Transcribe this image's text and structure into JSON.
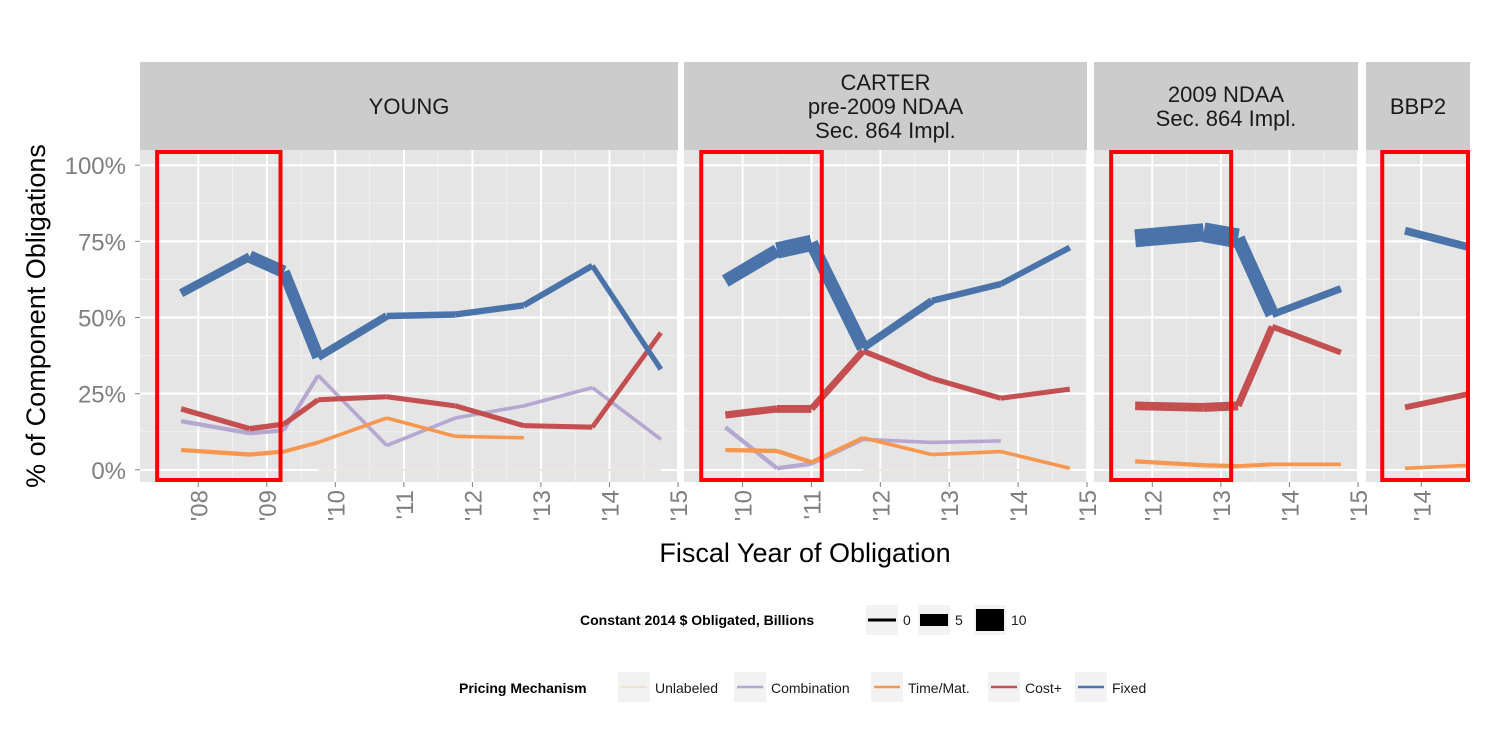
{
  "chart_data": {
    "type": "line",
    "ylabel": "% of Component Obligations",
    "xlabel": "Fiscal Year of Obligation",
    "y_tick_labels": [
      "0%",
      "25%",
      "50%",
      "75%",
      "100%"
    ],
    "ylim": [
      -0.04,
      1.05
    ],
    "colors": {
      "Unlabeled": "#ece5d6",
      "Combination": "#b4a7d0",
      "Time/Mat.": "#f7964e",
      "Cost+": "#c44f51",
      "Fixed": "#4a73a9",
      "highlight": "#ff0000",
      "panel": "#e5e5e5",
      "strip": "#cccccc"
    },
    "size_legend": {
      "title": "Constant 2014 $ Obligated, Billions",
      "labels": [
        "0",
        "5",
        "10"
      ],
      "values": [
        0,
        5,
        10
      ]
    },
    "color_legend": {
      "title": "Pricing Mechanism",
      "labels": [
        "Unlabeled",
        "Combination",
        "Time/Mat.",
        "Cost+",
        "Fixed"
      ]
    },
    "panels": [
      {
        "strip": [
          "YOUNG"
        ],
        "xlim": [
          2007.15,
          2015
        ],
        "x_tick_labels": [
          "'08",
          "'09",
          "'10",
          "'11",
          "'12",
          "'13",
          "'14",
          "'15"
        ],
        "x_ticks": [
          2008,
          2009,
          2010,
          2011,
          2012,
          2013,
          2014,
          2015
        ],
        "highlight": [
          2007.4,
          2009.2
        ],
        "series": [
          {
            "name": "Unlabeled",
            "x": [
              2009.75,
              2010.75,
              2011.75,
              2012.75,
              2013.75,
              2014.75
            ],
            "y": [
              0.0,
              0.0,
              0.0,
              0.0,
              0.0,
              0.0
            ],
            "w": [
              0.5,
              0.5,
              0.5,
              0.5,
              0.5,
              0.5
            ]
          },
          {
            "name": "Combination",
            "x": [
              2007.75,
              2008.75,
              2009.25,
              2009.75,
              2010.75,
              2011.75,
              2012.75,
              2013.75,
              2014.75
            ],
            "y": [
              0.16,
              0.12,
              0.13,
              0.31,
              0.08,
              0.17,
              0.21,
              0.27,
              0.1
            ],
            "w": [
              1.2,
              1.2,
              1.2,
              1.0,
              1.0,
              1.0,
              1.0,
              1.0,
              1.0
            ]
          },
          {
            "name": "Time/Mat.",
            "x": [
              2007.75,
              2008.75,
              2009.25,
              2009.75,
              2010.75,
              2011.75,
              2012.75
            ],
            "y": [
              0.065,
              0.05,
              0.06,
              0.09,
              0.17,
              0.11,
              0.105
            ],
            "w": [
              1.2,
              1.2,
              1.2,
              1.0,
              1.0,
              1.0,
              1.0
            ]
          },
          {
            "name": "Cost+",
            "x": [
              2007.75,
              2008.75,
              2009.25,
              2009.75,
              2010.75,
              2011.75,
              2012.75,
              2013.75,
              2014.75
            ],
            "y": [
              0.2,
              0.135,
              0.15,
              0.23,
              0.24,
              0.21,
              0.145,
              0.14,
              0.45
            ],
            "w": [
              1.5,
              1.5,
              1.5,
              1.4,
              1.4,
              1.4,
              1.4,
              1.4,
              1.3
            ]
          },
          {
            "name": "Fixed",
            "x": [
              2007.75,
              2008.75,
              2009.25,
              2009.75,
              2010.75,
              2011.75,
              2012.75,
              2013.75,
              2014.75
            ],
            "y": [
              0.58,
              0.7,
              0.65,
              0.37,
              0.505,
              0.51,
              0.54,
              0.67,
              0.33
            ],
            "w": [
              1.8,
              3.0,
              4.0,
              2.6,
              1.8,
              1.8,
              1.7,
              1.7,
              1.2
            ]
          }
        ]
      },
      {
        "strip": [
          "CARTER",
          "pre-2009 NDAA",
          "Sec. 864 Impl."
        ],
        "xlim": [
          2009.15,
          2015
        ],
        "x_tick_labels": [
          "'10",
          "'11",
          "'12",
          "'13",
          "'14",
          "'15"
        ],
        "x_ticks": [
          2010,
          2011,
          2012,
          2013,
          2014,
          2015
        ],
        "highlight": [
          2009.4,
          2011.15
        ],
        "series": [
          {
            "name": "Unlabeled",
            "x": [
              2011.75,
              2012.75,
              2013.75,
              2014.75
            ],
            "y": [
              0.0,
              0.0,
              0.0,
              0.0
            ],
            "w": [
              0.5,
              0.5,
              0.5,
              0.5
            ]
          },
          {
            "name": "Combination",
            "x": [
              2009.75,
              2010.5,
              2011.0,
              2011.75,
              2012.75,
              2013.75
            ],
            "y": [
              0.14,
              0.005,
              0.02,
              0.1,
              0.09,
              0.095
            ],
            "w": [
              1.2,
              1.2,
              1.2,
              1.0,
              1.0,
              1.0
            ]
          },
          {
            "name": "Time/Mat.",
            "x": [
              2009.75,
              2010.5,
              2011.0,
              2011.75,
              2012.75,
              2013.75,
              2014.75
            ],
            "y": [
              0.065,
              0.062,
              0.025,
              0.105,
              0.05,
              0.06,
              0.005
            ],
            "w": [
              1.2,
              1.2,
              1.2,
              1.0,
              1.0,
              1.0,
              1.0
            ]
          },
          {
            "name": "Cost+",
            "x": [
              2009.75,
              2010.5,
              2011.0,
              2011.75,
              2012.75,
              2013.75,
              2014.75
            ],
            "y": [
              0.18,
              0.2,
              0.2,
              0.39,
              0.3,
              0.235,
              0.265
            ],
            "w": [
              1.8,
              2.2,
              2.2,
              1.6,
              1.5,
              1.4,
              1.4
            ]
          },
          {
            "name": "Fixed",
            "x": [
              2009.75,
              2010.5,
              2011.0,
              2011.75,
              2012.75,
              2013.75,
              2014.75
            ],
            "y": [
              0.62,
              0.72,
              0.745,
              0.4,
              0.555,
              0.61,
              0.73
            ],
            "w": [
              3.0,
              4.3,
              4.8,
              2.4,
              1.9,
              1.7,
              1.6
            ]
          }
        ]
      },
      {
        "strip": [
          "2009 NDAA",
          "Sec. 864 Impl."
        ],
        "xlim": [
          2011.15,
          2015
        ],
        "x_tick_labels": [
          "'12",
          "'13",
          "'14",
          "'15"
        ],
        "x_ticks": [
          2012,
          2013,
          2014,
          2015
        ],
        "highlight": [
          2011.4,
          2013.15
        ],
        "series": [
          {
            "name": "Time/Mat.",
            "x": [
              2011.75,
              2012.75,
              2013.25,
              2013.75,
              2014.75
            ],
            "y": [
              0.028,
              0.015,
              0.012,
              0.018,
              0.018
            ],
            "w": [
              1.2,
              1.2,
              1.2,
              1.0,
              1.0
            ]
          },
          {
            "name": "Cost+",
            "x": [
              2011.75,
              2012.75,
              2013.25,
              2013.75,
              2014.75
            ],
            "y": [
              0.21,
              0.205,
              0.21,
              0.47,
              0.385
            ],
            "w": [
              2.2,
              2.6,
              2.4,
              1.6,
              1.6
            ]
          },
          {
            "name": "Fixed",
            "x": [
              2011.75,
              2012.75,
              2013.25,
              2013.75,
              2014.75
            ],
            "y": [
              0.76,
              0.78,
              0.76,
              0.51,
              0.595
            ],
            "w": [
              4.5,
              5.5,
              5.5,
              2.2,
              1.8
            ]
          }
        ]
      },
      {
        "strip": [
          "BBP2"
        ],
        "xlim": [
          2013.15,
          2014.75
        ],
        "x_tick_labels": [
          "'14"
        ],
        "x_ticks": [
          2014
        ],
        "highlight": [
          2013.4,
          2014.75
        ],
        "series": [
          {
            "name": "Time/Mat.",
            "x": [
              2013.75,
              2014.75
            ],
            "y": [
              0.005,
              0.015
            ],
            "w": [
              1.0,
              1.0
            ]
          },
          {
            "name": "Cost+",
            "x": [
              2013.75,
              2014.75
            ],
            "y": [
              0.205,
              0.25
            ],
            "w": [
              1.6,
              1.6
            ]
          },
          {
            "name": "Fixed",
            "x": [
              2013.75,
              2014.75
            ],
            "y": [
              0.785,
              0.73
            ],
            "w": [
              2.2,
              2.2
            ]
          }
        ]
      }
    ]
  }
}
